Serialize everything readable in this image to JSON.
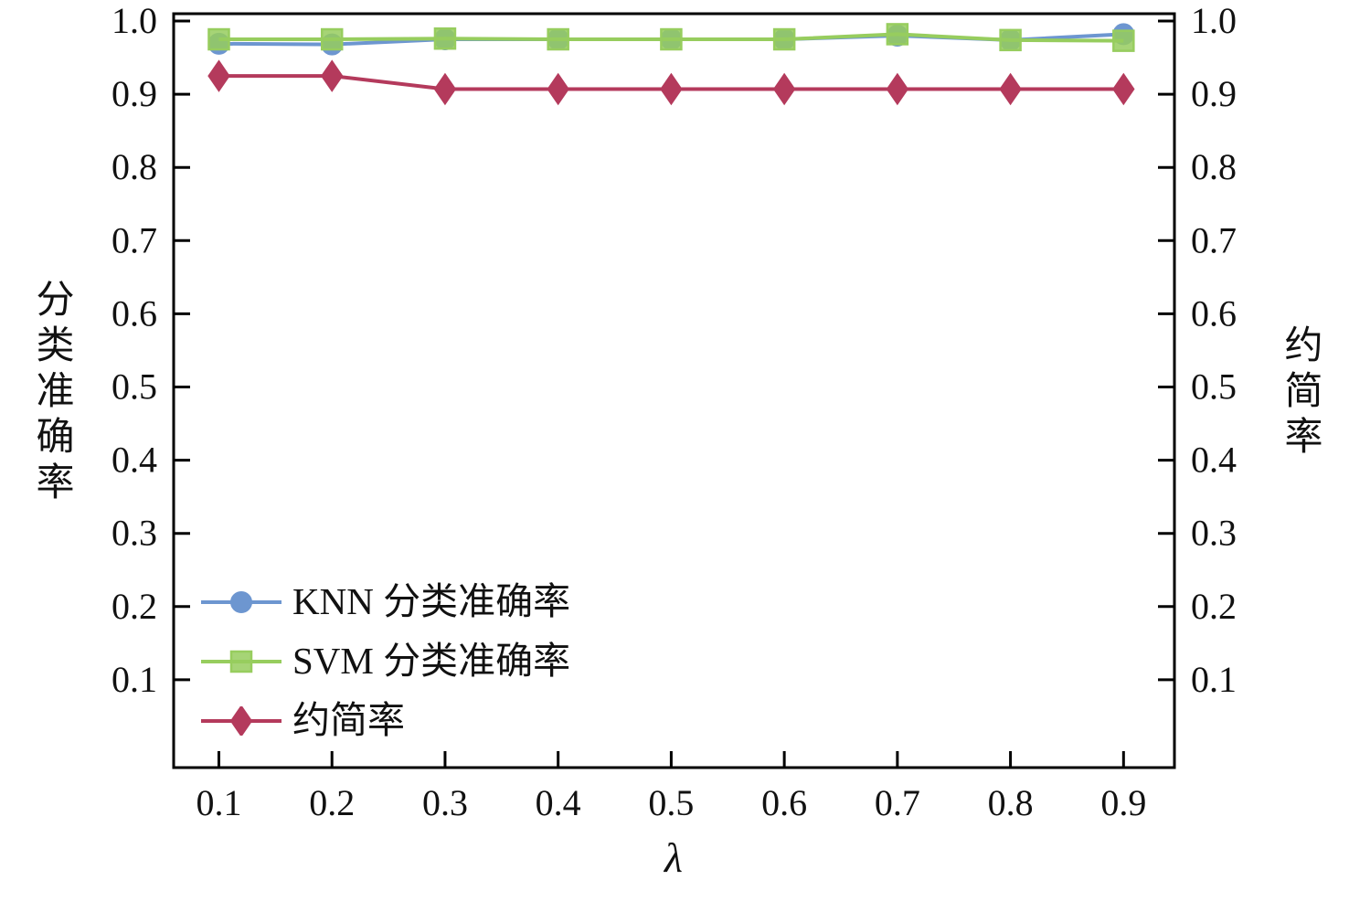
{
  "chart_data": {
    "type": "line",
    "title": "",
    "xlabel": "λ",
    "ylabel_left": "分类准确率",
    "ylabel_right": "约简率",
    "x": [
      0.1,
      0.2,
      0.3,
      0.4,
      0.5,
      0.6,
      0.7,
      0.8,
      0.9
    ],
    "xticks": [
      "0.1",
      "0.2",
      "0.3",
      "0.4",
      "0.5",
      "0.6",
      "0.7",
      "0.8",
      "0.9"
    ],
    "yticks": [
      "0.1",
      "0.2",
      "0.3",
      "0.4",
      "0.5",
      "0.6",
      "0.7",
      "0.8",
      "0.9",
      "1.0"
    ],
    "xlim": [
      0.06,
      0.945
    ],
    "ylim": [
      -0.02,
      1.01
    ],
    "grid": false,
    "legend_position": "lower-left",
    "background": "#ffffff",
    "axis_color": "#000000",
    "series": [
      {
        "name": "KNN 分类准确率",
        "axis": "left",
        "marker": "circle",
        "color": "#6d96d0",
        "values": [
          0.969,
          0.968,
          0.975,
          0.975,
          0.975,
          0.975,
          0.98,
          0.974,
          0.982
        ]
      },
      {
        "name": "SVM 分类准确率",
        "axis": "left",
        "marker": "square",
        "color": "#97cd5e",
        "values": [
          0.975,
          0.975,
          0.976,
          0.975,
          0.975,
          0.975,
          0.982,
          0.974,
          0.973
        ]
      },
      {
        "name": "约简率",
        "axis": "right",
        "marker": "diamond",
        "color": "#b43a5c",
        "values": [
          0.925,
          0.925,
          0.907,
          0.907,
          0.907,
          0.907,
          0.907,
          0.907,
          0.907
        ]
      }
    ]
  }
}
